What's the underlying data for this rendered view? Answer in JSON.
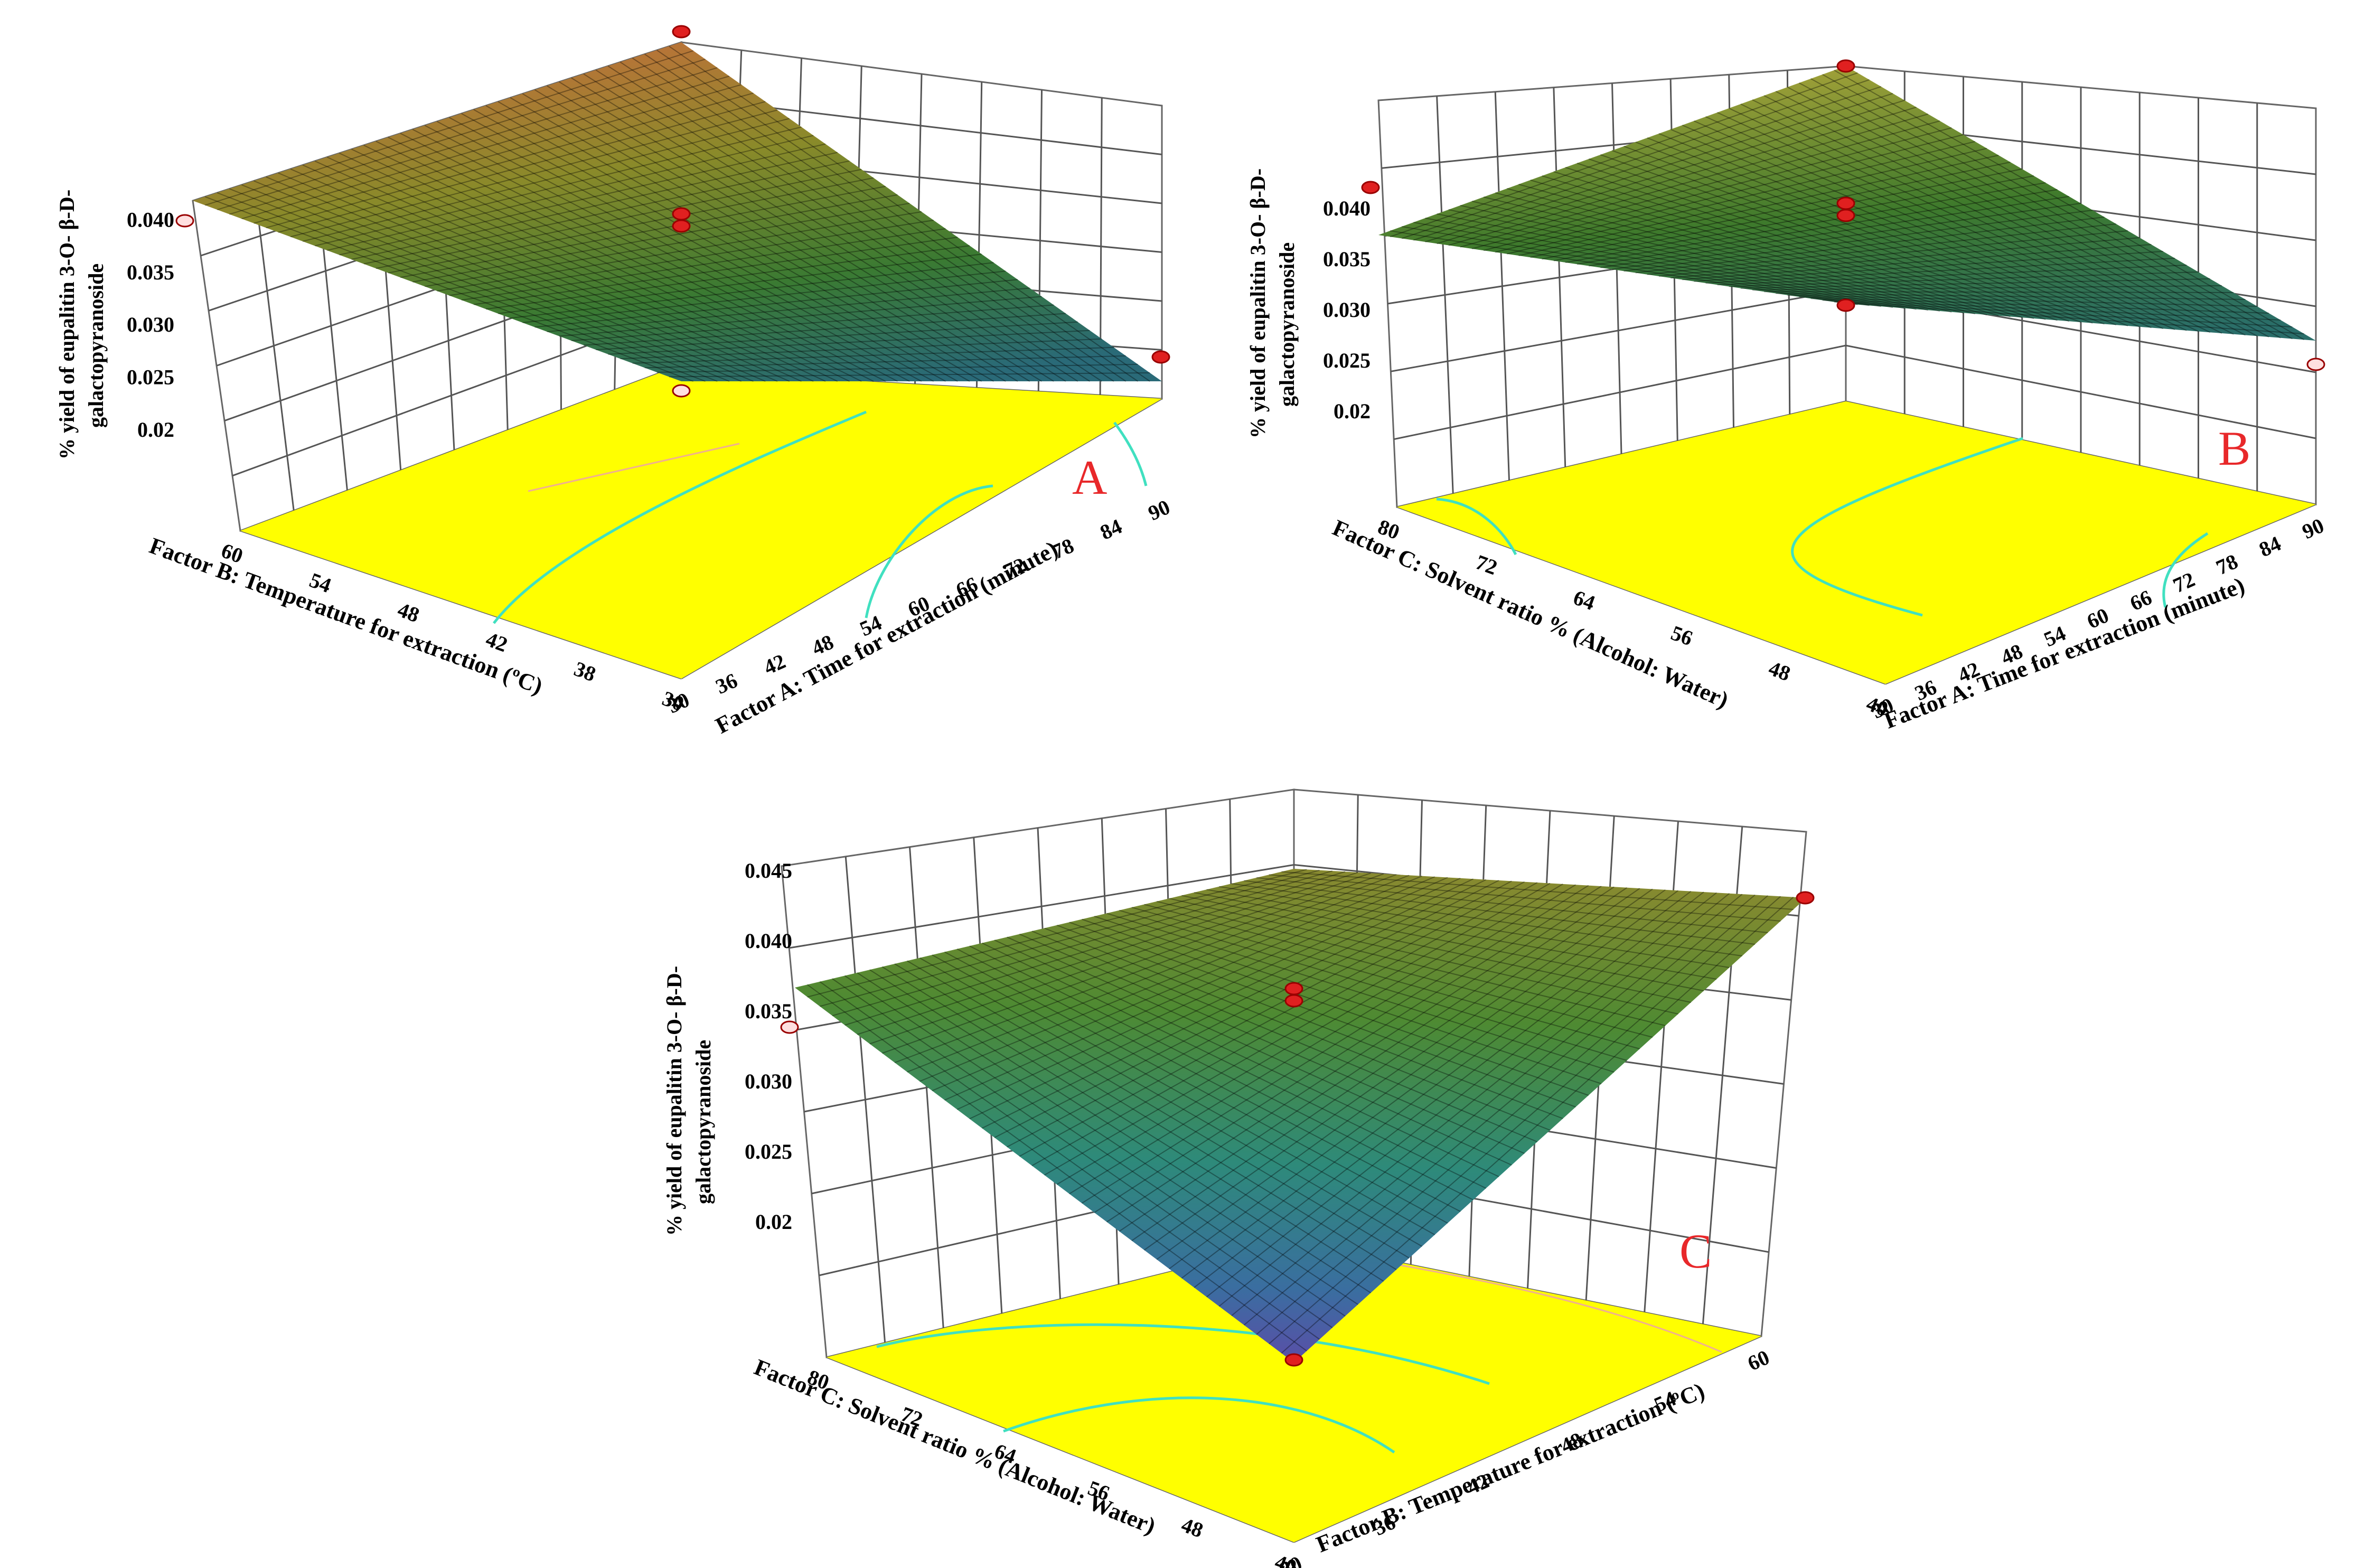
{
  "chart_data": [
    {
      "type": "surface",
      "panel_label": "A",
      "ylabel_line1": "% yield of eupalitin 3-O- β-D-",
      "ylabel_line2": "galactopyranoside",
      "xlabel": "Factor A: Time for extraction (minute)",
      "zlabel": "Factor B: Temperature  for extraction (",
      "x_ticks": [
        "30",
        "36",
        "42",
        "48",
        "54",
        "60",
        "66",
        "72",
        "78",
        "84",
        "90"
      ],
      "z_ticks": [
        "30",
        "38",
        "42",
        "48",
        "54",
        "60"
      ],
      "y_ticks": [
        "0.02",
        "0.025",
        "0.030",
        "0.035",
        "0.040"
      ],
      "xlim": [
        30,
        90
      ],
      "zlim": [
        30,
        60
      ],
      "ylim": [
        0.02,
        0.045
      ],
      "surface_corners": {
        "A_low_B_low": 0.0435,
        "A_high_B_low": 0.024,
        "A_low_B_high": 0.037,
        "A_high_B_high": 0.024
      },
      "floor_color": "#ffff00",
      "contour_color": "#40e0c0"
    },
    {
      "type": "surface",
      "panel_label": "B",
      "ylabel_line1": "% yield of eupalitin 3-O- β-D-",
      "ylabel_line2": "galactopyranoside",
      "xlabel": "Factor A: Time for extraction (minute)",
      "zlabel": "Factor C: Solvent ratio % (Alcohol: Water)",
      "x_ticks": [
        "30",
        "36",
        "42",
        "48",
        "54",
        "60",
        "66",
        "72",
        "78",
        "84",
        "90"
      ],
      "z_ticks": [
        "40",
        "48",
        "56",
        "64",
        "72",
        "80"
      ],
      "y_ticks": [
        "0.02",
        "0.025",
        "0.030",
        "0.035",
        "0.040"
      ],
      "xlim": [
        30,
        90
      ],
      "zlim": [
        40,
        80
      ],
      "ylim": [
        0.02,
        0.045
      ],
      "surface_corners": {
        "A_low_C_low": 0.0425,
        "A_high_C_low": 0.027,
        "A_low_C_high": 0.034,
        "A_high_C_high": 0.025
      },
      "floor_color": "#ffff00",
      "contour_color": "#40e0c0"
    },
    {
      "type": "surface",
      "panel_label": "C",
      "ylabel_line1": "% yield of eupalitin 3-O- β-D-",
      "ylabel_line2": "galactopyranoside",
      "xlabel": "Factor B: Temperature  for extraction (",
      "zlabel": "Factor C: Solvent ratio % (Alcohol: Water)",
      "x_ticks": [
        "30",
        "36",
        "42",
        "48",
        "54",
        "60"
      ],
      "z_ticks": [
        "40",
        "48",
        "56",
        "64",
        "72",
        "80"
      ],
      "y_ticks": [
        "0.02",
        "0.025",
        "0.030",
        "0.035",
        "0.040",
        "0.045"
      ],
      "xlim": [
        30,
        60
      ],
      "zlim": [
        40,
        80
      ],
      "ylim": [
        0.02,
        0.045
      ],
      "surface_corners": {
        "B_low_C_low": 0.0445,
        "B_high_C_low": 0.041,
        "B_low_C_high": 0.0355,
        "B_high_C_high": 0.016
      },
      "floor_color": "#ffff00",
      "contour_color": "#40e0c0"
    }
  ],
  "unit_suffix": "ºC)"
}
